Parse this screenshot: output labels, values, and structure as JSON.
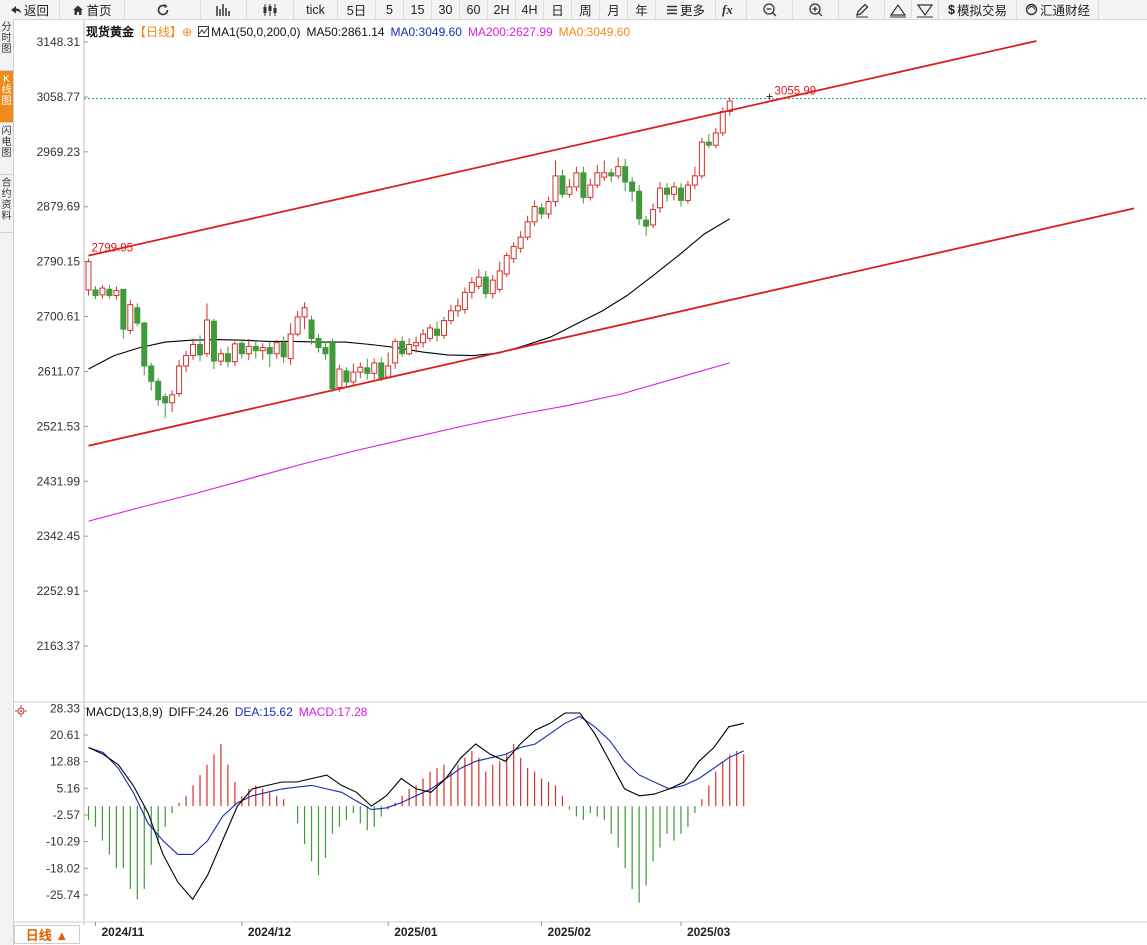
{
  "toolbar": {
    "back": "返回",
    "home": "首页",
    "tick": "tick",
    "d5": "5日",
    "m5": "5",
    "m15": "15",
    "m30": "30",
    "m60": "60",
    "h2": "2H",
    "h4": "4H",
    "day": "日",
    "week": "周",
    "month": "月",
    "year": "年",
    "more": "更多",
    "sim": "模拟交易",
    "hk": "汇通财经"
  },
  "sidebar": [
    "分时图",
    "K线图",
    "闪电图",
    "合约资料"
  ],
  "sidebar_active": 1,
  "legend": {
    "title": "现货黄金",
    "period": "【日线】",
    "ma_name": "MA1(50,0,200,0)",
    "ma50": "MA50:2861.14",
    "ma0": "MA0:3049.60",
    "ma200": "MA200:2627.99",
    "ma0b": "MA0:3049.60"
  },
  "macd_legend": {
    "name": "MACD(13,8,9)",
    "diff": "DIFF:24.26",
    "dea": "DEA:15.62",
    "macd": "MACD:17.28"
  },
  "period_button": "日线 ▲",
  "colors": {
    "up": "#d0322c",
    "down": "#3e9a3a",
    "ma50": "#000000",
    "ma200": "#d81ee0",
    "trend": "#dd1c1c",
    "dea": "#1a2bb0",
    "diff": "#000000",
    "accent": "#f08a1c"
  },
  "chart_data": [
    {
      "type": "candlestick",
      "title": "现货黄金",
      "y_ticks": [
        3148.31,
        3058.77,
        2969.23,
        2879.69,
        2790.15,
        2700.61,
        2611.07,
        2521.53,
        2431.99,
        2342.45,
        2252.91,
        2163.37
      ],
      "ylim": [
        2120,
        3175
      ],
      "x_labels": [
        {
          "text": "2024/11",
          "index": 1
        },
        {
          "text": "2024/12",
          "index": 22
        },
        {
          "text": "2025/01",
          "index": 43
        },
        {
          "text": "2025/02",
          "index": 65
        },
        {
          "text": "2025/03",
          "index": 85
        }
      ],
      "annotations": [
        {
          "text": "2799.95",
          "index": 0,
          "value": 2799.95
        },
        {
          "text": "3055.99",
          "index": 98,
          "value": 3055.99
        }
      ],
      "reference_line": 3055.99,
      "candles": [
        [
          2744,
          2790,
          2795,
          2735
        ],
        [
          2744,
          2735,
          2750,
          2729
        ],
        [
          2736,
          2747,
          2752,
          2730
        ],
        [
          2745,
          2735,
          2752,
          2730
        ],
        [
          2735,
          2743,
          2750,
          2728
        ],
        [
          2745,
          2680,
          2745,
          2665
        ],
        [
          2678,
          2720,
          2728,
          2672
        ],
        [
          2715,
          2690,
          2722,
          2685
        ],
        [
          2690,
          2620,
          2692,
          2605
        ],
        [
          2620,
          2595,
          2625,
          2580
        ],
        [
          2595,
          2565,
          2600,
          2555
        ],
        [
          2570,
          2560,
          2575,
          2535
        ],
        [
          2560,
          2573,
          2580,
          2545
        ],
        [
          2575,
          2620,
          2630,
          2570
        ],
        [
          2620,
          2637,
          2645,
          2610
        ],
        [
          2637,
          2655,
          2665,
          2630
        ],
        [
          2655,
          2638,
          2670,
          2628
        ],
        [
          2640,
          2695,
          2722,
          2635
        ],
        [
          2693,
          2628,
          2697,
          2615
        ],
        [
          2628,
          2640,
          2648,
          2620
        ],
        [
          2640,
          2627,
          2652,
          2618
        ],
        [
          2627,
          2656,
          2660,
          2620
        ],
        [
          2657,
          2640,
          2664,
          2632
        ],
        [
          2640,
          2652,
          2664,
          2630
        ],
        [
          2652,
          2645,
          2660,
          2632
        ],
        [
          2645,
          2650,
          2657,
          2630
        ],
        [
          2650,
          2640,
          2660,
          2618
        ],
        [
          2640,
          2658,
          2662,
          2632
        ],
        [
          2658,
          2635,
          2668,
          2625
        ],
        [
          2632,
          2672,
          2690,
          2622
        ],
        [
          2672,
          2700,
          2710,
          2668
        ],
        [
          2700,
          2715,
          2724,
          2680
        ],
        [
          2695,
          2665,
          2702,
          2655
        ],
        [
          2665,
          2650,
          2672,
          2642
        ],
        [
          2650,
          2640,
          2660,
          2630
        ],
        [
          2660,
          2583,
          2665,
          2578
        ],
        [
          2585,
          2615,
          2622,
          2578
        ],
        [
          2612,
          2594,
          2618,
          2585
        ],
        [
          2594,
          2610,
          2624,
          2588
        ],
        [
          2610,
          2618,
          2626,
          2600
        ],
        [
          2617,
          2608,
          2632,
          2598
        ],
        [
          2608,
          2625,
          2632,
          2598
        ],
        [
          2625,
          2600,
          2634,
          2595
        ],
        [
          2602,
          2620,
          2642,
          2600
        ],
        [
          2625,
          2660,
          2665,
          2615
        ],
        [
          2660,
          2640,
          2668,
          2635
        ],
        [
          2640,
          2655,
          2665,
          2637
        ],
        [
          2653,
          2658,
          2668,
          2642
        ],
        [
          2658,
          2672,
          2680,
          2650
        ],
        [
          2665,
          2682,
          2688,
          2660
        ],
        [
          2680,
          2670,
          2692,
          2660
        ],
        [
          2670,
          2694,
          2700,
          2664
        ],
        [
          2694,
          2710,
          2720,
          2688
        ],
        [
          2710,
          2718,
          2730,
          2700
        ],
        [
          2712,
          2740,
          2748,
          2705
        ],
        [
          2740,
          2756,
          2765,
          2730
        ],
        [
          2750,
          2765,
          2778,
          2745
        ],
        [
          2765,
          2738,
          2775,
          2730
        ],
        [
          2738,
          2760,
          2768,
          2730
        ],
        [
          2745,
          2775,
          2790,
          2740
        ],
        [
          2770,
          2800,
          2805,
          2765
        ],
        [
          2795,
          2815,
          2822,
          2788
        ],
        [
          2812,
          2830,
          2840,
          2805
        ],
        [
          2830,
          2855,
          2865,
          2825
        ],
        [
          2855,
          2880,
          2890,
          2848
        ],
        [
          2878,
          2868,
          2885,
          2860
        ],
        [
          2868,
          2888,
          2896,
          2860
        ],
        [
          2888,
          2930,
          2955,
          2880
        ],
        [
          2930,
          2900,
          2940,
          2895
        ],
        [
          2900,
          2912,
          2925,
          2895
        ],
        [
          2912,
          2935,
          2945,
          2905
        ],
        [
          2935,
          2895,
          2945,
          2885
        ],
        [
          2895,
          2915,
          2925,
          2890
        ],
        [
          2915,
          2935,
          2948,
          2910
        ],
        [
          2928,
          2935,
          2955,
          2922
        ],
        [
          2935,
          2930,
          2942,
          2920
        ],
        [
          2930,
          2945,
          2960,
          2925
        ],
        [
          2945,
          2920,
          2958,
          2905
        ],
        [
          2920,
          2905,
          2928,
          2888
        ],
        [
          2905,
          2860,
          2915,
          2850
        ],
        [
          2858,
          2848,
          2865,
          2832
        ],
        [
          2850,
          2875,
          2885,
          2845
        ],
        [
          2878,
          2910,
          2920,
          2870
        ],
        [
          2910,
          2900,
          2918,
          2888
        ],
        [
          2900,
          2912,
          2920,
          2890
        ],
        [
          2910,
          2890,
          2918,
          2880
        ],
        [
          2890,
          2915,
          2922,
          2885
        ],
        [
          2915,
          2930,
          2945,
          2908
        ],
        [
          2930,
          2985,
          2992,
          2925
        ],
        [
          2985,
          2980,
          2998,
          2975
        ],
        [
          2980,
          3000,
          3008,
          2975
        ],
        [
          3000,
          3035,
          3042,
          2995
        ],
        [
          3035,
          3052,
          3058,
          3028
        ]
      ],
      "ma50": {
        "start": 0,
        "values": [
          2615,
          2637,
          2650,
          2659,
          2662,
          2663,
          2662,
          2660,
          2660,
          2659,
          2659,
          2655,
          2650,
          2643,
          2638,
          2637,
          2641,
          2653,
          2667,
          2688,
          2709,
          2735,
          2767,
          2800,
          2835,
          2860
        ]
      },
      "ma200": {
        "start": 0,
        "values": [
          2367,
          2390,
          2412,
          2436,
          2460,
          2482,
          2502,
          2522,
          2540,
          2556,
          2575,
          2600,
          2625
        ]
      },
      "channel": [
        {
          "from": {
            "index": 0,
            "value": 2800
          },
          "to": {
            "index": 136,
            "value": 3150
          }
        },
        {
          "from": {
            "index": 0,
            "value": 2490
          },
          "to": {
            "index": 150,
            "value": 2877
          }
        }
      ]
    },
    {
      "type": "macd",
      "title": "MACD(13,8,9)",
      "y_ticks": [
        28.33,
        20.61,
        12.88,
        5.16,
        -2.57,
        -10.29,
        -18.02,
        -25.74
      ],
      "ylim": [
        -33,
        30
      ],
      "diff": [
        17,
        15,
        12,
        6,
        -2,
        -14,
        -22,
        -27,
        -20,
        -10,
        0,
        5,
        6,
        7,
        7,
        8,
        9,
        6,
        4,
        0,
        3,
        8,
        5,
        4,
        8,
        14,
        18,
        15,
        13,
        18,
        22,
        24,
        27,
        27,
        21,
        13,
        5,
        3,
        3.5,
        5,
        7,
        13,
        17,
        23,
        24
      ],
      "dea": [
        17,
        15.5,
        11,
        4,
        -5,
        -10,
        -14,
        -14,
        -10,
        -3,
        1,
        3,
        4,
        5,
        5.5,
        6,
        5,
        4,
        1.5,
        -1,
        -0.5,
        1,
        3,
        5,
        8,
        11,
        13,
        14,
        15,
        17,
        18,
        21,
        24,
        26,
        23,
        19,
        13,
        9,
        7,
        5,
        6,
        8,
        11,
        14,
        16
      ],
      "macd": [
        -4,
        -6,
        -10,
        -14,
        -18,
        -18,
        -24,
        -27,
        -24,
        -17,
        -11,
        -6,
        -2,
        1,
        3,
        6,
        9,
        12,
        15,
        18,
        12,
        7,
        3,
        5,
        6,
        5,
        4,
        3,
        2,
        0,
        -5,
        -11,
        -16,
        -20,
        -15,
        -8,
        -6,
        -4,
        -2,
        -5,
        -7,
        -6,
        -3,
        -1,
        1,
        3,
        5,
        6,
        8,
        10,
        11,
        12,
        10,
        12,
        14,
        16,
        14,
        10,
        12,
        13,
        15,
        18,
        14,
        11,
        10,
        8,
        7,
        6,
        3,
        -1,
        -3,
        -4,
        -2,
        -3,
        -4,
        -8,
        -12,
        -18,
        -24,
        -28,
        -23,
        -16,
        -12,
        -8,
        -10,
        -8,
        -6,
        -2,
        2,
        6,
        10,
        13,
        15,
        16,
        15
      ]
    }
  ]
}
